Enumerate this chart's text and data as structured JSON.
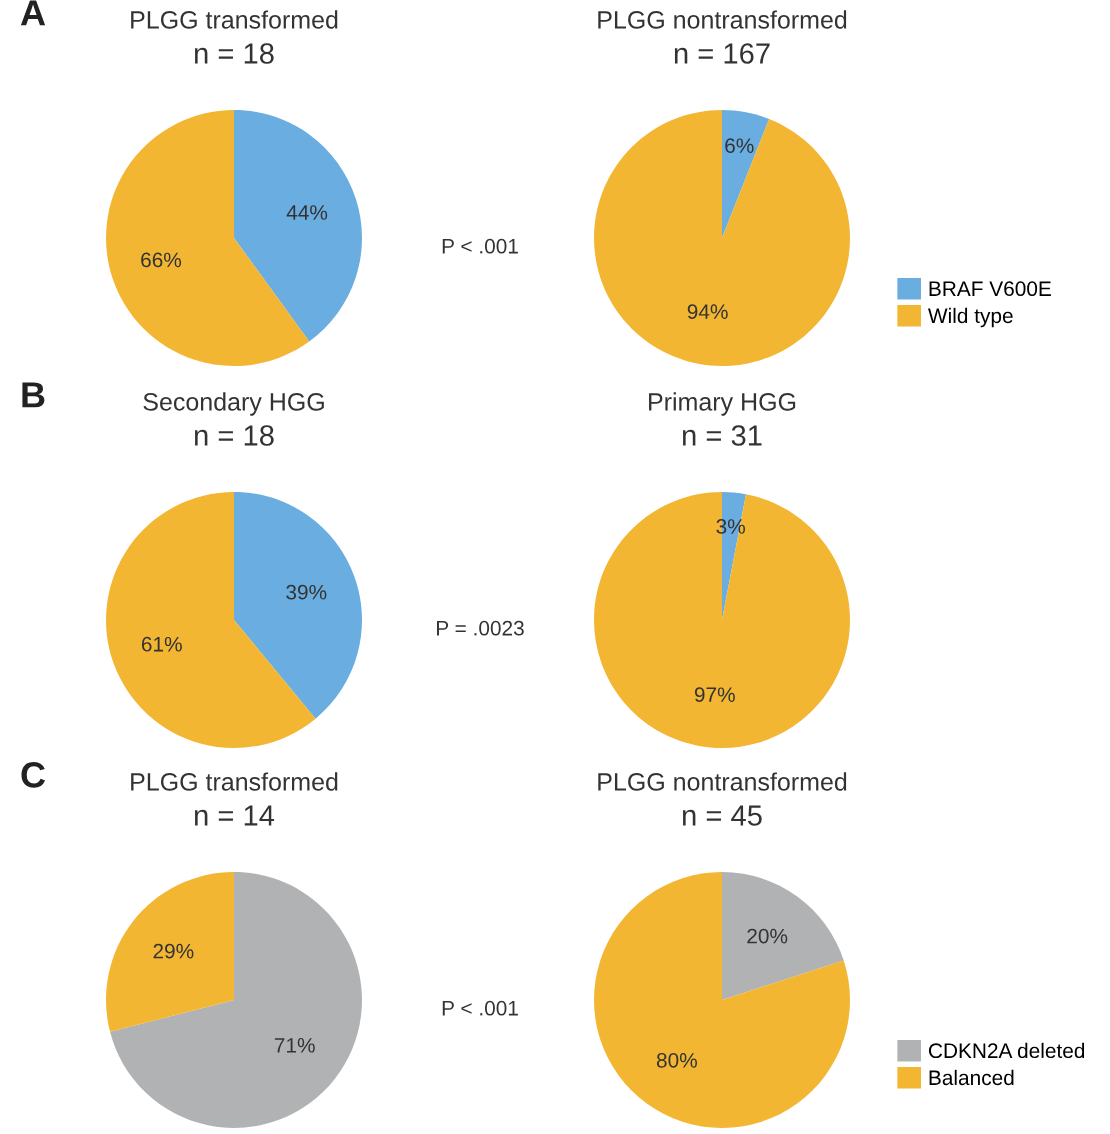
{
  "chart_data": [
    {
      "type": "pie",
      "title": "PLGG transformed",
      "subtitle": "n = 18",
      "categories": [
        "BRAF V600E",
        "Wild type"
      ],
      "values": [
        44,
        66
      ],
      "colors": [
        "#6aade0",
        "#f2b632"
      ],
      "value_labels": [
        "44%",
        "66%"
      ],
      "annotations": [
        "A",
        "P < .001"
      ],
      "legend": "right"
    },
    {
      "type": "pie",
      "title": "PLGG nontransformed",
      "subtitle": "n = 167",
      "categories": [
        null,
        null
      ],
      "values": [
        6,
        94
      ],
      "colors": [
        "#6aade0",
        "#f2b632"
      ],
      "value_labels": [
        "6%",
        "94%"
      ]
    },
    {
      "type": "pie",
      "title": "Secondary HGG",
      "subtitle": "n = 18",
      "categories": [
        null,
        null
      ],
      "values": [
        39,
        61
      ],
      "colors": [
        "#6aade0",
        "#f2b632"
      ],
      "value_labels": [
        "39%",
        "61%"
      ],
      "annotations": [
        "B",
        "P = .0023"
      ]
    },
    {
      "type": "pie",
      "title": "Primary HGG",
      "subtitle": "n = 31",
      "categories": [
        null,
        null
      ],
      "values": [
        3,
        97
      ],
      "colors": [
        "#6aade0",
        "#f2b632"
      ],
      "value_labels": [
        "3%",
        "97%"
      ]
    },
    {
      "type": "pie",
      "title": "PLGG transformed",
      "subtitle": "n = 14",
      "categories": [
        "CDKN2A deleted",
        "Balanced"
      ],
      "values": [
        71,
        29
      ],
      "colors": [
        "#b1b2b4",
        "#f2b632"
      ],
      "value_labels": [
        "71%",
        "29%"
      ],
      "annotations": [
        "C",
        "P < .001"
      ],
      "legend": "right"
    },
    {
      "type": "pie",
      "title": "PLGG nontransformed",
      "subtitle": "n = 45",
      "categories": [
        null,
        null
      ],
      "values": [
        20,
        80
      ],
      "colors": [
        "#b1b2b4",
        "#f2b632"
      ],
      "value_labels": [
        "20%",
        "80%"
      ]
    }
  ]
}
